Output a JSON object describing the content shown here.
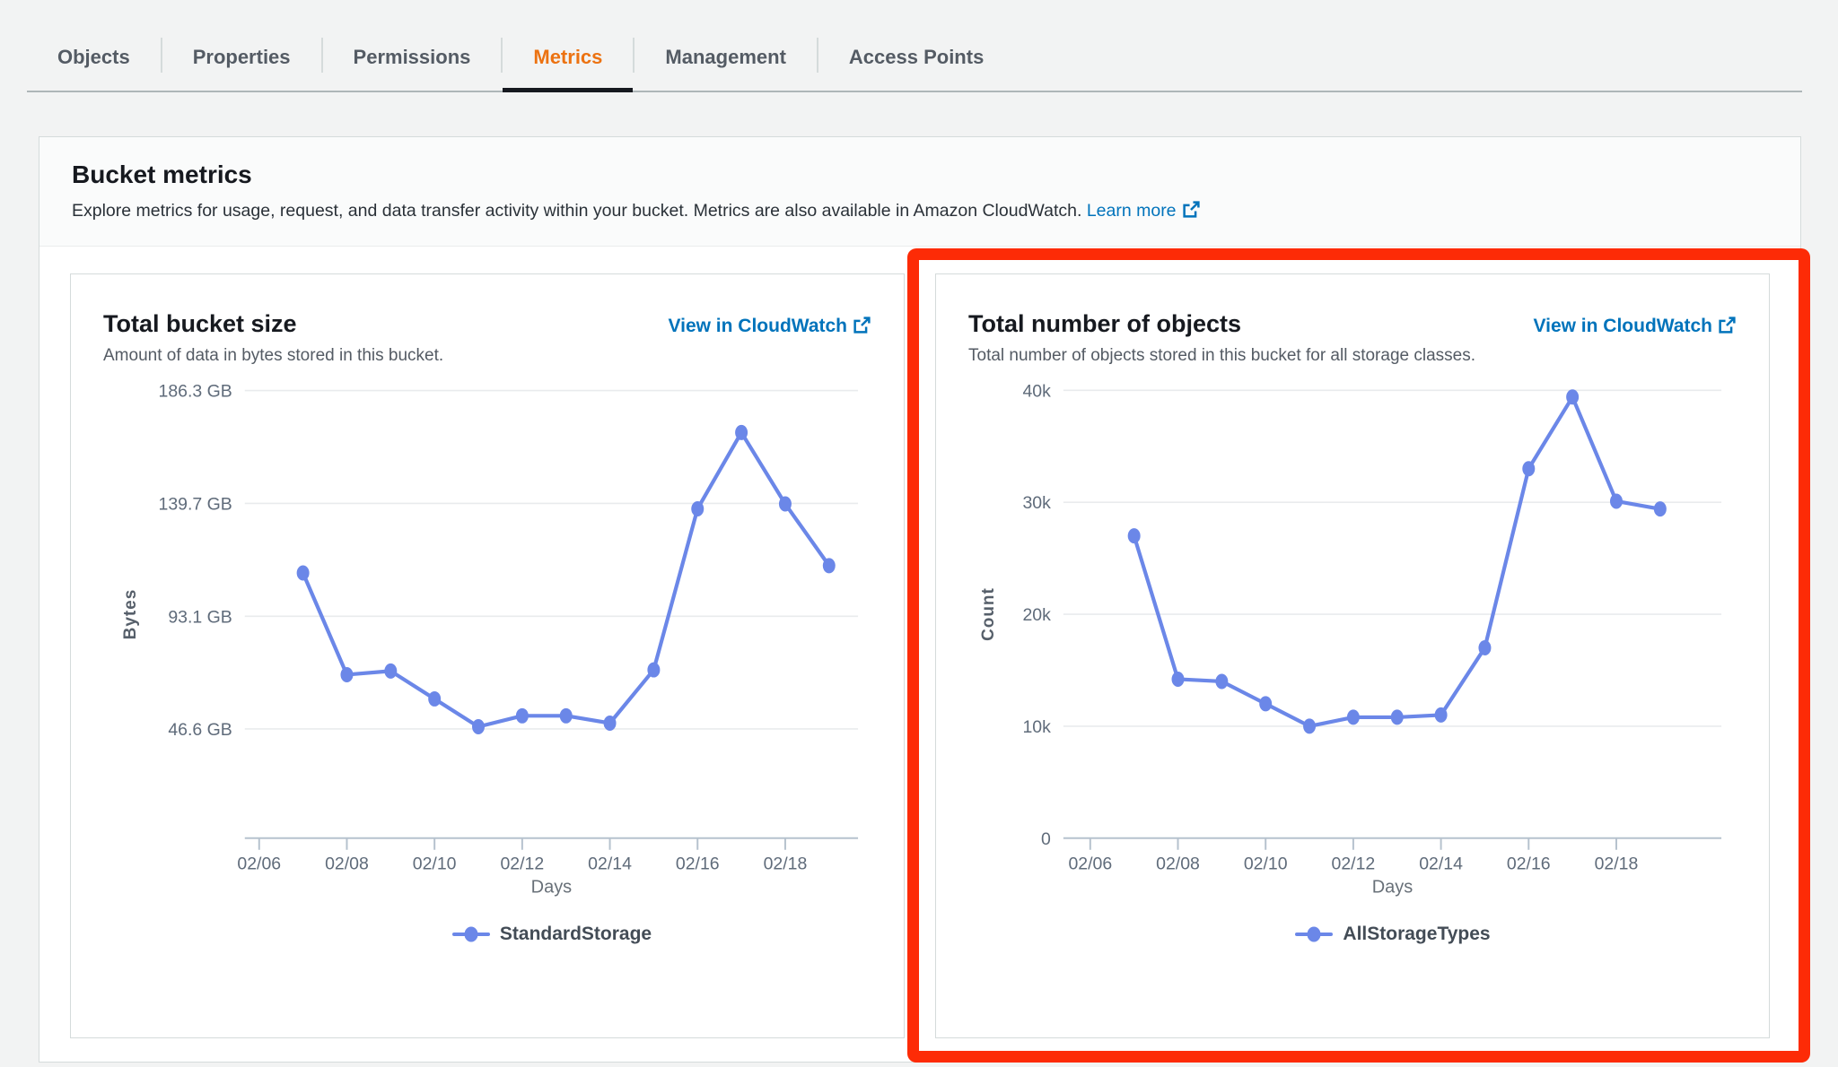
{
  "tabs": {
    "items": [
      {
        "id": "objects",
        "label": "Objects",
        "active": false
      },
      {
        "id": "properties",
        "label": "Properties",
        "active": false
      },
      {
        "id": "permissions",
        "label": "Permissions",
        "active": false
      },
      {
        "id": "metrics",
        "label": "Metrics",
        "active": true
      },
      {
        "id": "management",
        "label": "Management",
        "active": false
      },
      {
        "id": "access-points",
        "label": "Access Points",
        "active": false
      }
    ]
  },
  "panel": {
    "title": "Bucket metrics",
    "description": "Explore metrics for usage, request, and data transfer activity within your bucket. Metrics are also available in Amazon CloudWatch.",
    "learn_more_label": "Learn more"
  },
  "colors": {
    "accent_orange": "#ec7211",
    "link_blue": "#0073bb",
    "line_blue": "#6b87e8",
    "annotation_red": "#fd2b06"
  },
  "annotation": {
    "type": "highlight-rectangle",
    "color": "#fd2b06",
    "target": "Total number of objects chart card"
  },
  "chart_data": [
    {
      "type": "line",
      "title": "Total bucket size",
      "subtitle": "Amount of data in bytes stored in this bucket.",
      "action_link": "View in CloudWatch",
      "xlabel": "Days",
      "ylabel": "Bytes",
      "legend": [
        "StandardStorage"
      ],
      "legend_position": "bottom",
      "grid": true,
      "unit": "GB",
      "x_dates": [
        "02/07",
        "02/08",
        "02/09",
        "02/10",
        "02/11",
        "02/12",
        "02/13",
        "02/14",
        "02/15",
        "02/16",
        "02/17",
        "02/18",
        "02/19"
      ],
      "values": [
        111,
        69,
        70.5,
        59,
        47.5,
        52,
        52,
        49,
        71,
        137.5,
        169,
        139.5,
        114
      ],
      "xtick_labels": [
        "02/06",
        "02/08",
        "02/10",
        "02/12",
        "02/14",
        "02/16",
        "02/18"
      ],
      "ytick_labels": [
        "46.6 GB",
        "93.1 GB",
        "139.7 GB",
        "186.3 GB"
      ],
      "ytick_values": [
        46.6,
        93.1,
        139.7,
        186.3
      ],
      "ylim": [
        1.5,
        196
      ],
      "line_color": "#6b87e8"
    },
    {
      "type": "line",
      "title": "Total number of objects",
      "subtitle": "Total number of objects stored in this bucket for all storage classes.",
      "action_link": "View in CloudWatch",
      "xlabel": "Days",
      "ylabel": "Count",
      "legend": [
        "AllStorageTypes"
      ],
      "legend_position": "bottom",
      "grid": true,
      "unit": "objects",
      "x_dates": [
        "02/07",
        "02/08",
        "02/09",
        "02/10",
        "02/11",
        "02/12",
        "02/13",
        "02/14",
        "02/15",
        "02/16",
        "02/17",
        "02/18",
        "02/19"
      ],
      "values": [
        27000,
        14200,
        14000,
        12000,
        10000,
        10800,
        10800,
        11000,
        17000,
        33000,
        39400,
        30100,
        29400
      ],
      "xtick_labels": [
        "02/06",
        "02/08",
        "02/10",
        "02/12",
        "02/14",
        "02/16",
        "02/18"
      ],
      "ytick_labels": [
        "0",
        "10k",
        "20k",
        "30k",
        "40k"
      ],
      "ytick_values": [
        0,
        10000,
        20000,
        30000,
        40000
      ],
      "ylim": [
        0,
        42100
      ],
      "line_color": "#6b87e8"
    }
  ]
}
